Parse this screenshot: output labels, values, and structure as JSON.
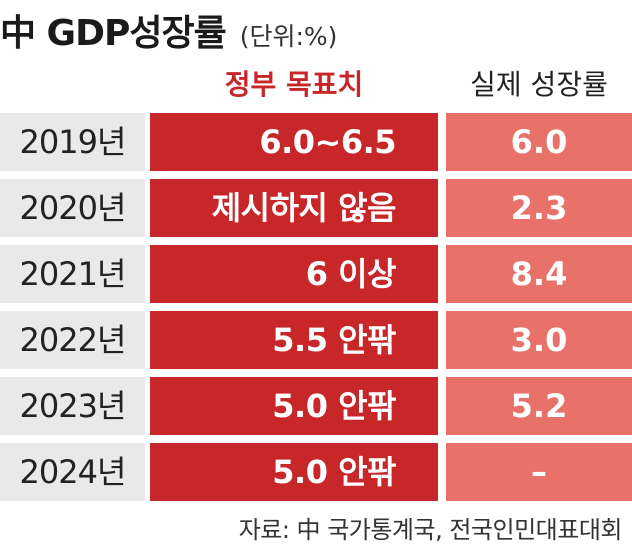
{
  "header": {
    "title": "中 GDP성장률",
    "unit": "(단위:%)"
  },
  "chart_data": {
    "type": "table",
    "columns": [
      "",
      "정부 목표치",
      "실제 성장률"
    ],
    "rows": [
      {
        "year": "2019년",
        "target": "6.0~6.5",
        "actual": "6.0"
      },
      {
        "year": "2020년",
        "target": "제시하지 않음",
        "actual": "2.3"
      },
      {
        "year": "2021년",
        "target": "6 이상",
        "actual": "8.4"
      },
      {
        "year": "2022년",
        "target": "5.5 안팎",
        "actual": "3.0"
      },
      {
        "year": "2023년",
        "target": "5.0 안팎",
        "actual": "5.2"
      },
      {
        "year": "2024년",
        "target": "5.0 안팎",
        "actual": "–"
      }
    ]
  },
  "colors": {
    "target_bg": "#c8272a",
    "actual_bg": "#e8726a",
    "year_bg": "#e9e9e9"
  },
  "footer": {
    "source": "자료: 中 국가통계국, 전국인민대표대회"
  }
}
